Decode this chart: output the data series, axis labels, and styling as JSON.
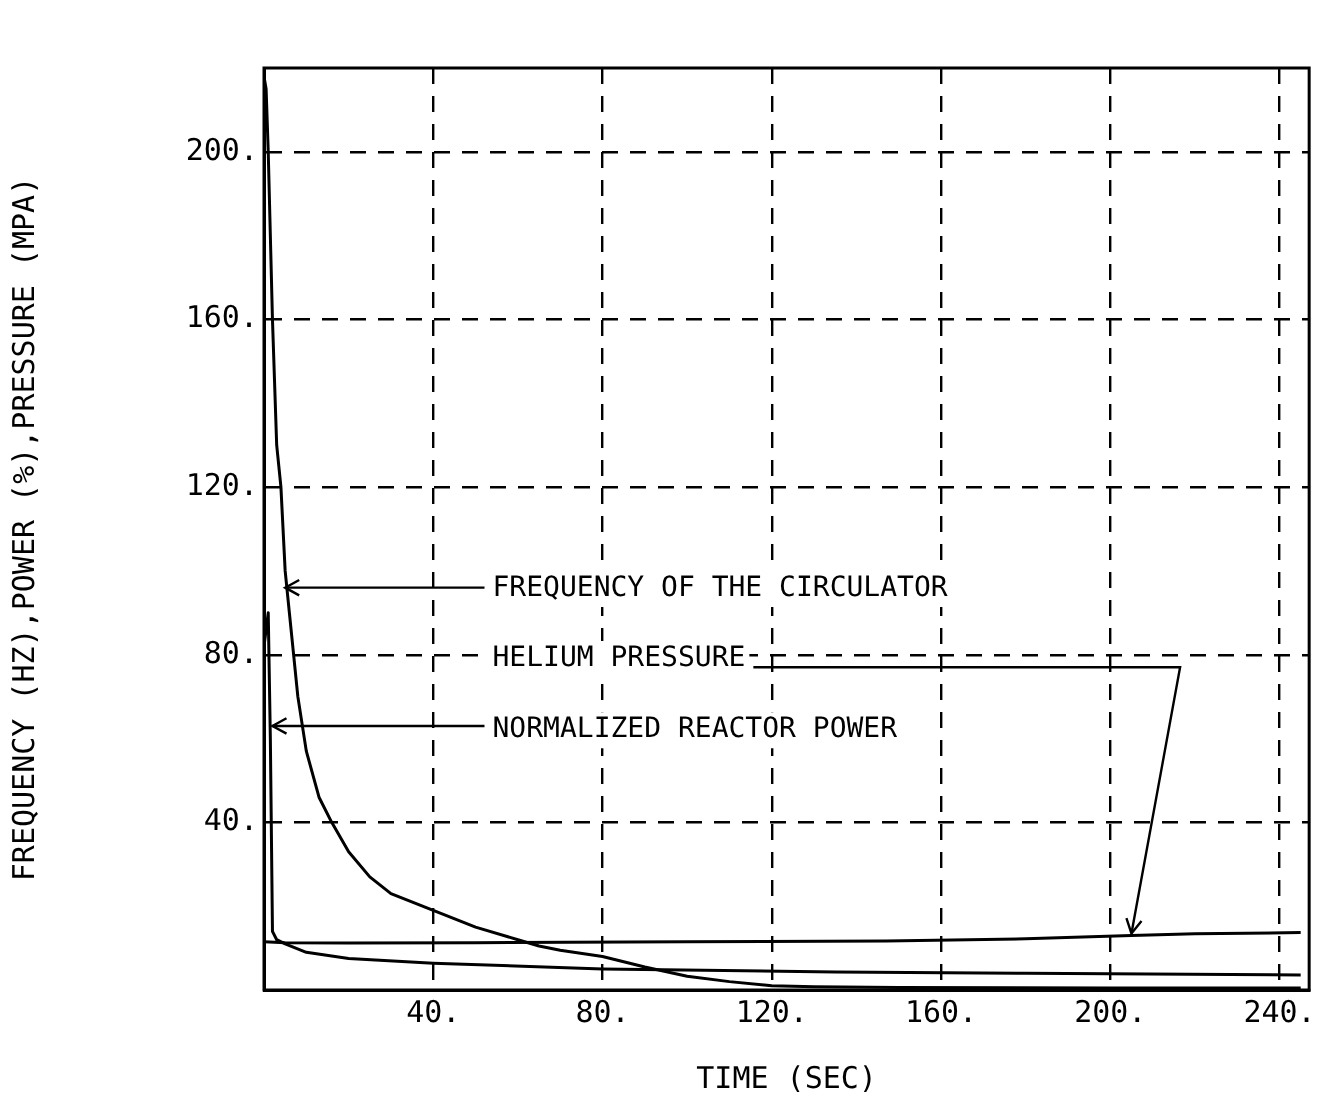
{
  "chart_data": {
    "type": "line",
    "xlabel": "TIME (SEC)",
    "ylabel": "FREQUENCY (HZ),POWER (%),PRESSURE (MPA)",
    "xlim": [
      0,
      247
    ],
    "ylim": [
      0,
      220
    ],
    "xticks": [
      {
        "value": 40,
        "label": "40."
      },
      {
        "value": 80,
        "label": "80."
      },
      {
        "value": 120,
        "label": "120."
      },
      {
        "value": 160,
        "label": "160."
      },
      {
        "value": 200,
        "label": "200."
      },
      {
        "value": 240,
        "label": "240."
      }
    ],
    "yticks": [
      {
        "value": 40,
        "label": "40."
      },
      {
        "value": 80,
        "label": "80."
      },
      {
        "value": 120,
        "label": "120."
      },
      {
        "value": 160,
        "label": "160."
      },
      {
        "value": 200,
        "label": "200."
      }
    ],
    "grid": true,
    "line_style": "solid",
    "series": [
      {
        "color": "#000000",
        "x": [
          0,
          0.5,
          1,
          2,
          3,
          4,
          5,
          6,
          8,
          10,
          13,
          16,
          20,
          25,
          30,
          40,
          50,
          60,
          65,
          70,
          80,
          90,
          100,
          110,
          120,
          130,
          150,
          200,
          245
        ],
        "values": [
          218,
          215,
          200,
          160,
          130,
          120,
          100,
          90,
          70,
          57,
          46,
          40,
          33,
          27,
          23,
          19,
          15,
          12,
          10.5,
          9.5,
          8,
          5.5,
          3.3,
          2,
          1,
          0.8,
          0.6,
          0.5,
          0.5
        ]
      },
      {
        "color": "#000000",
        "x": [
          0,
          5,
          20,
          50,
          100,
          147,
          180,
          205,
          220,
          245
        ],
        "values": [
          11.5,
          11.3,
          11.2,
          11.3,
          11.5,
          11.7,
          12.2,
          13,
          13.4,
          13.7
        ]
      },
      {
        "color": "#000000",
        "x": [
          0,
          0.5,
          1,
          1.5,
          2,
          3,
          5,
          10,
          20,
          40,
          80,
          135,
          180,
          245
        ],
        "values": [
          82,
          86,
          90,
          60,
          14,
          12,
          11,
          9,
          7.5,
          6.4,
          5,
          4.3,
          4,
          3.6
        ]
      }
    ],
    "annotations": [
      {
        "text": "FREQUENCY OF THE CIRCULATOR",
        "x": 5,
        "y": 96
      },
      {
        "text": "HELIUM PRESSURE",
        "x": 205,
        "y": 13.5
      },
      {
        "text": "NORMALIZED REACTOR POWER",
        "x": 2,
        "y": 63
      }
    ]
  }
}
